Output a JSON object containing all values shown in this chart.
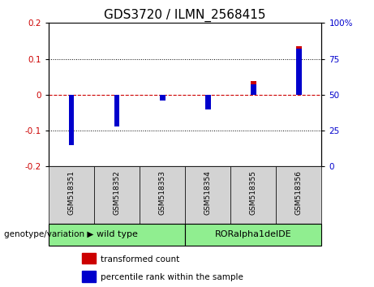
{
  "title": "GDS3720 / ILMN_2568415",
  "samples": [
    "GSM518351",
    "GSM518352",
    "GSM518353",
    "GSM518354",
    "GSM518355",
    "GSM518356"
  ],
  "group_names": [
    "wild type",
    "RORalpha1delDE"
  ],
  "group_ranges": [
    [
      0,
      2
    ],
    [
      3,
      5
    ]
  ],
  "red_values": [
    -0.13,
    -0.088,
    -0.015,
    -0.005,
    0.038,
    0.135
  ],
  "blue_values_pct": [
    15,
    28,
    46,
    40,
    57,
    82
  ],
  "ylim_left": [
    -0.2,
    0.2
  ],
  "ylim_right": [
    0,
    100
  ],
  "yticks_left": [
    -0.2,
    -0.1,
    0.0,
    0.1,
    0.2
  ],
  "yticks_right": [
    0,
    25,
    50,
    75,
    100
  ],
  "red_color": "#CC0000",
  "blue_color": "#0000CC",
  "zero_line_color": "#CC0000",
  "red_bar_width": 0.12,
  "blue_bar_width": 0.12,
  "background_color": "#ffffff",
  "group_color": "#90EE90",
  "sample_box_color": "#d3d3d3",
  "legend_red": "transformed count",
  "legend_blue": "percentile rank within the sample",
  "title_fontsize": 11,
  "tick_fontsize": 7.5,
  "sample_fontsize": 6.5,
  "group_fontsize": 8,
  "legend_fontsize": 7.5,
  "genotype_label": "genotype/variation"
}
